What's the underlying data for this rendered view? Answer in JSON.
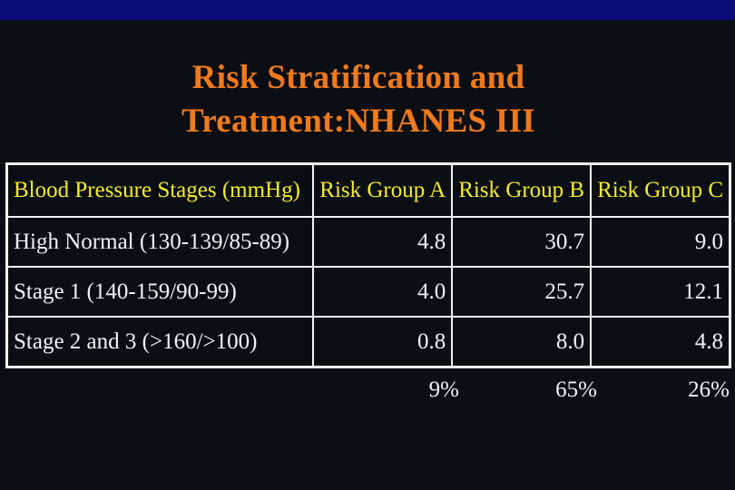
{
  "title": {
    "line1": "Risk Stratification and",
    "line2": "Treatment:NHANES III"
  },
  "table": {
    "headers": [
      "Blood Pressure Stages (mmHg)",
      "Risk Group A",
      "Risk Group B",
      "Risk Group C"
    ],
    "rows": [
      {
        "stage": "High Normal (130-139/85-89)",
        "a": "4.8",
        "b": "30.7",
        "c": "9.0"
      },
      {
        "stage": "Stage 1 (140-159/90-99)",
        "a": "4.0",
        "b": "25.7",
        "c": "12.1"
      },
      {
        "stage": "Stage 2 and 3 (>160/>100)",
        "a": "0.8",
        "b": "8.0",
        "c": "4.8"
      }
    ],
    "totals": [
      "9%",
      "65%",
      "26%"
    ]
  },
  "colors": {
    "background": "#0b0f14",
    "top_strip": "#0a0a78",
    "title": "#f07a1c",
    "header_text": "#f5ec2e",
    "body_text": "#f2f2f2"
  }
}
